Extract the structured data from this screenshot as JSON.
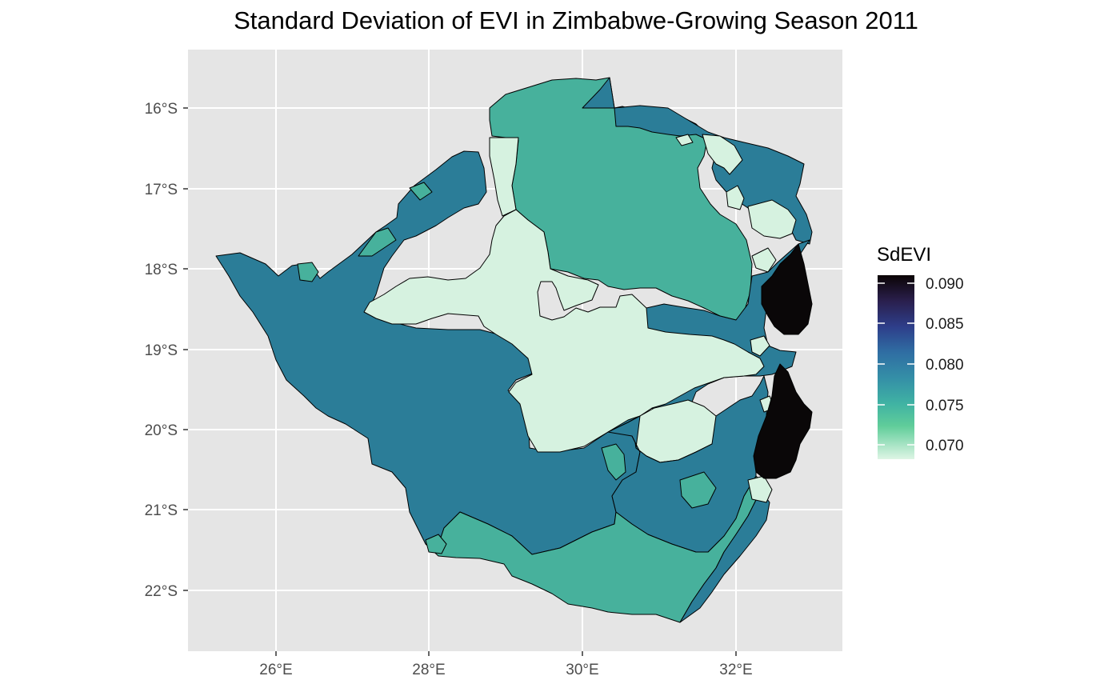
{
  "title": "Standard Deviation of EVI in Zimbabwe-Growing Season 2011",
  "map": {
    "panel_background": "#e5e5e5",
    "grid_color": "#ffffff",
    "border_color": "#000000",
    "x_ticks": [
      "26°E",
      "28°E",
      "30°E",
      "32°E"
    ],
    "y_ticks": [
      "16°S",
      "17°S",
      "18°S",
      "19°S",
      "20°S",
      "21°S",
      "22°S"
    ],
    "region_colors": {
      "light": "#d6f2e0",
      "teal": "#2b7d98",
      "green": "#47b19c",
      "dark": "#0a0708"
    }
  },
  "legend": {
    "title": "SdEVI",
    "labels": [
      "0.090",
      "0.085",
      "0.080",
      "0.075",
      "0.070"
    ],
    "gradient": [
      "#0b0405",
      "#2a1f4d",
      "#2e3e8a",
      "#2f6ea3",
      "#348fa7",
      "#40b3a3",
      "#60cd9a",
      "#def5e5"
    ]
  }
}
